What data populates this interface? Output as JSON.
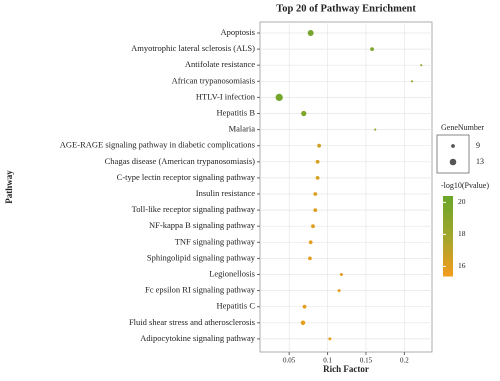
{
  "chart_data": {
    "type": "bubble",
    "title": "Top 20 of Pathway Enrichment",
    "x_label": "Rich Factor",
    "y_label": "Pathway",
    "categories": [
      "Apoptosis",
      "Amyotrophic lateral sclerosis (ALS)",
      "Antifolate resistance",
      "African trypanosomiasis",
      "HTLV-I infection",
      "Hepatitis B",
      "Malaria",
      "AGE-RAGE signaling pathway in diabetic complications",
      "Chagas disease (American trypanosomiasis)",
      "C-type lectin receptor signaling pathway",
      "Insulin resistance",
      "Toll-like receptor signaling pathway",
      "NF-kappa B signaling pathway",
      "TNF signaling pathway",
      "Sphingolipid signaling pathway",
      "Legionellosis",
      "Fc epsilon RI signaling pathway",
      "Hepatitis C",
      "Fluid shear stress and atherosclerosis",
      "Adipocytokine signaling pathway"
    ],
    "values": [
      0.078,
      0.158,
      0.222,
      0.21,
      0.037,
      0.069,
      0.162,
      0.089,
      0.087,
      0.087,
      0.084,
      0.084,
      0.081,
      0.078,
      0.077,
      0.118,
      0.115,
      0.07,
      0.068,
      0.103
    ],
    "sizes": [
      12,
      9,
      7,
      7,
      14,
      11,
      7,
      9,
      9,
      9,
      9,
      9,
      9,
      9,
      9,
      8,
      8,
      9,
      10,
      8
    ],
    "color_values": [
      20,
      19.5,
      18.2,
      18.2,
      20,
      19.5,
      18.3,
      16.5,
      16.3,
      16.3,
      16.1,
      16.1,
      16.0,
      15.8,
      15.8,
      15.9,
      15.9,
      15.8,
      15.7,
      15.8
    ],
    "xlim": [
      0.012,
      0.236
    ],
    "xticks": [
      0.05,
      0.1,
      0.15,
      0.2
    ],
    "grid": true,
    "size_legend_title": "GeneNumber",
    "size_legend": [
      9,
      13
    ],
    "color_legend_title": "-log10(Pvalue)",
    "clim": [
      15.4,
      20.4
    ],
    "cticks": [
      16,
      18,
      20
    ],
    "color_low": "#f39c1e",
    "color_mid": "#a2a62a",
    "color_high": "#6aa62a"
  }
}
